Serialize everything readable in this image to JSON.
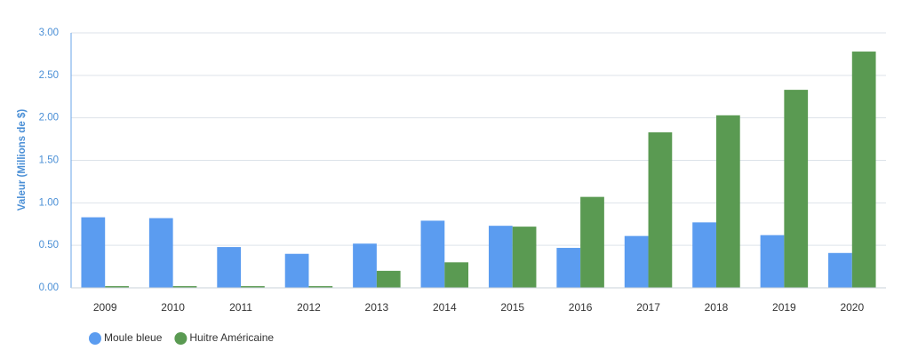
{
  "chart_data": {
    "type": "bar",
    "y_label": "Valeur (Millions de $)",
    "categories": [
      "2009",
      "2010",
      "2011",
      "2012",
      "2013",
      "2014",
      "2015",
      "2016",
      "2017",
      "2018",
      "2019",
      "2020"
    ],
    "series": [
      {
        "name": "Moule bleue",
        "color": "#5b9cf0",
        "values": [
          0.83,
          0.82,
          0.48,
          0.4,
          0.52,
          0.79,
          0.73,
          0.47,
          0.61,
          0.77,
          0.62,
          0.41
        ]
      },
      {
        "name": "Huitre Américaine",
        "color": "#5a9a52",
        "values": [
          0.02,
          0.02,
          0.02,
          0.02,
          0.2,
          0.3,
          0.72,
          1.07,
          1.83,
          2.03,
          2.33,
          2.78
        ]
      }
    ],
    "ylim": [
      0,
      3
    ],
    "yticks": [
      {
        "value": 0,
        "label": "0.00"
      },
      {
        "value": 0.5,
        "label": "0.50"
      },
      {
        "value": 1,
        "label": "1.00"
      },
      {
        "value": 1.5,
        "label": "1.50"
      },
      {
        "value": 2,
        "label": "2.00"
      },
      {
        "value": 2.5,
        "label": "2.50"
      },
      {
        "value": 3,
        "label": "3.00"
      }
    ],
    "grid": true,
    "legend": "bottom-left"
  }
}
